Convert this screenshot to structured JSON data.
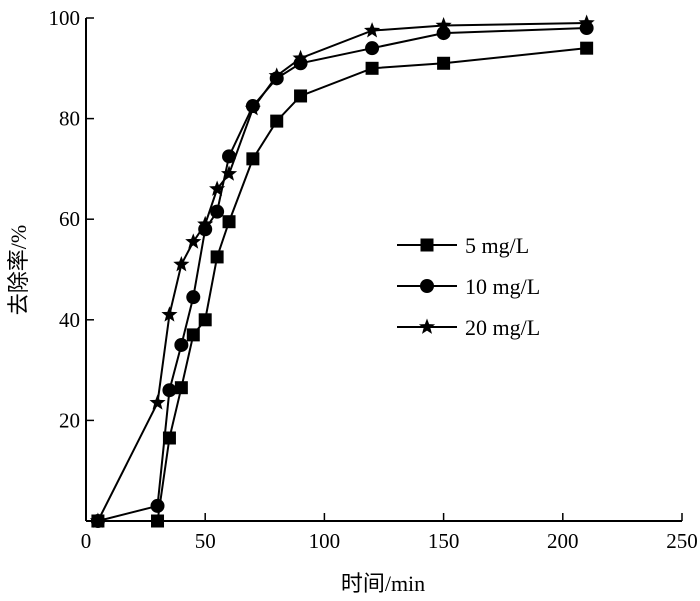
{
  "chart_data": {
    "type": "line",
    "xlabel": "时间/min",
    "ylabel": "去除率/%",
    "xlim": [
      0,
      250
    ],
    "ylim": [
      0,
      100
    ],
    "x_ticks": [
      0,
      50,
      100,
      150,
      200,
      250
    ],
    "y_ticks": [
      20,
      40,
      60,
      80,
      100
    ],
    "grid": false,
    "legend_position": "center-right",
    "series": [
      {
        "name": "5 mg/L",
        "marker": "square",
        "x": [
          5,
          30,
          35,
          40,
          45,
          50,
          55,
          60,
          70,
          80,
          90,
          120,
          150,
          210
        ],
        "y": [
          0,
          0,
          16.5,
          26.5,
          37,
          40,
          52.5,
          59.5,
          72,
          79.5,
          84.5,
          90,
          91,
          94
        ]
      },
      {
        "name": "10 mg/L",
        "marker": "circle",
        "x": [
          5,
          30,
          35,
          40,
          45,
          50,
          55,
          60,
          70,
          80,
          90,
          120,
          150,
          210
        ],
        "y": [
          0,
          3,
          26,
          35,
          44.5,
          58,
          61.5,
          72.5,
          82.5,
          88,
          91,
          94,
          97,
          98
        ]
      },
      {
        "name": "20 mg/L",
        "marker": "star",
        "x": [
          5,
          30,
          35,
          40,
          45,
          50,
          55,
          60,
          70,
          80,
          90,
          120,
          150,
          210
        ],
        "y": [
          0,
          23.5,
          41,
          51,
          55.5,
          59,
          66,
          69,
          82,
          88.5,
          92,
          97.5,
          98.5,
          99
        ]
      }
    ]
  }
}
